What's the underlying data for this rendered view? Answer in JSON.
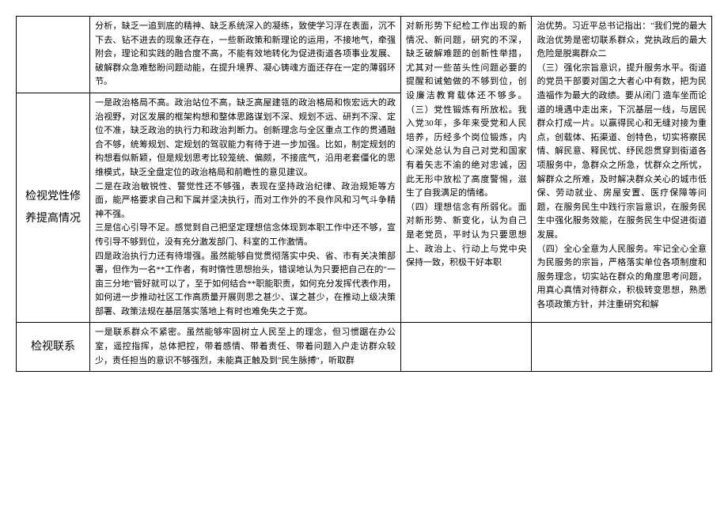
{
  "table": {
    "row1": {
      "label": "",
      "col2": "分析，缺乏一追到底的精神、缺乏系统深入的凝练，致使学习浮在表面，沉不下去、钻不进去的现象还存在，一些新政策和新理论的运用，不接地气，牵强附会，理论和实践的融合度不高，不能有效地转化为促进街道各项事业发展、破解群众急难愁盼问题动能，在提升境界、凝心铸魂方面还存在一定的薄弱环节。",
      "col3": "对新形势下纪检工作出现的新情况、新问题，研究的不深，缺乏破解难题的创新性举措，尤其对一些苗头性问题必要的提醒和诫勉做的不够到位，创设廉洁教育载体还不够多。",
      "col4": "治优势。习近平总书记指出：\"我们党的最大政治优势是密切联系群众，党执政后的最大危险是脱离群众二\n（三）强化宗旨意识，提升服务水平。街道的党员干部要对国之大者心中有数，把为民造福作为最大的政绩。要从闭门"
    },
    "row2": {
      "label": "检视党性修养提高情况",
      "col2": "一是政治格局不高。政治站位不高，缺乏高屋建瓴的政治格局和恢宏远大的政治视野，对区发展的框架构想和整体思路谋划不深、规划不远、研判不深、定位不准，缺乏政治的执行力和政治判断力。创新理念与全区重点工作的贯通融合不够，统筹规划、定规划的驾驭能力有待于进一步加强。比如，制定规划的构想看似新颖，但是规划思考比较笼统、偏颇，不接底气，沿用老套僵化的思维模式，缺乏全盘定位的政治格局和前瞻性的意见建议。\n二是在政治敏锐性、警觉性还不够强，表现在坚持政治纪律、政治规矩等方面，能严格要求自己和下属并坚决执行，而对工作外的不良作风和习气斗争精神不强。\n三是信心引导不足。感觉到自己把坚定理想信念体现到本职工作中还不够，宣传引导不够到位，没有充分激发部门、科室的工作激情。\n四是政治执行力还有待增强。虽然能够自觉贯彻落实中央、省、市有关决策部署，但作为一名**工作者，有时惰性思想抬头，错误地认为只要把自己在的\"一亩三分地\"管好就可以了，至于如何结合**职能职责，如何充分发挥代表作用，如何进一步推动社区工作高质量开展则思之甚少、谋之甚少，在推动上级决策部署、政策法规在基层落实落地上有时也难免失之于宽。",
      "col3": "（三）党性锻炼有所放松。我入党30年，多年来受党和人民培养，历经多个岗位锻炼，内心深处总认为自己对党和国家有着矢志不渝的绝对忠诚，因此无形中放松了高度警惕，滋生了自我满足的情绪。\n（四）理想信念有所弱化。面对新形势、新变化，认为自己是老党员，平时认为只要思想上、政治上、行动上与党中央保持一致，积极干好本职",
      "col4": "造车坐而论道的境遇中走出来，下沉基层一线，与居民群众打成一片。以赢得民心和无缝对接为重点，创载体、拓渠道、创特色，切实将察民情、解民意、释民忧、纾民怨贯穿到街道各项服务中，急群众之所急，忧群众之所忧，解群众之所难，及时解决群众关心的城市低保、劳动就业、房屋安置、医疗保障等问题，在服务民生中践行宗旨意识，在服务民生中强化服务效能，在服务民生中促进街道发展。\n（四）全心全意为人民服务。牢记全心全意为民服务的宗旨，严格落实单位各项制度和服务理念，切实站在群众的角度思考问题，用真心真情对待群众，积极转变思想，熟悉各项政策方针，并注重研究和解"
    },
    "row3": {
      "label": "检视联系",
      "col2": "一是联系群众不紧密。虽然能够牢固树立人民至上的理念，但习惯踞在办公室，遥控指挥，总体把控，带着感情、带着责任、带着问题入户走访群众较少，责任担当的意识不够强烈，未能真正触及到\"民生脉搏\"，听取群",
      "col3": "",
      "col4": ""
    }
  },
  "style": {
    "font_family": "SimSun",
    "border_color": "#000000",
    "background_color": "#ffffff",
    "body_fontsize": 11,
    "label_fontsize": 14,
    "line_height": 1.6
  }
}
